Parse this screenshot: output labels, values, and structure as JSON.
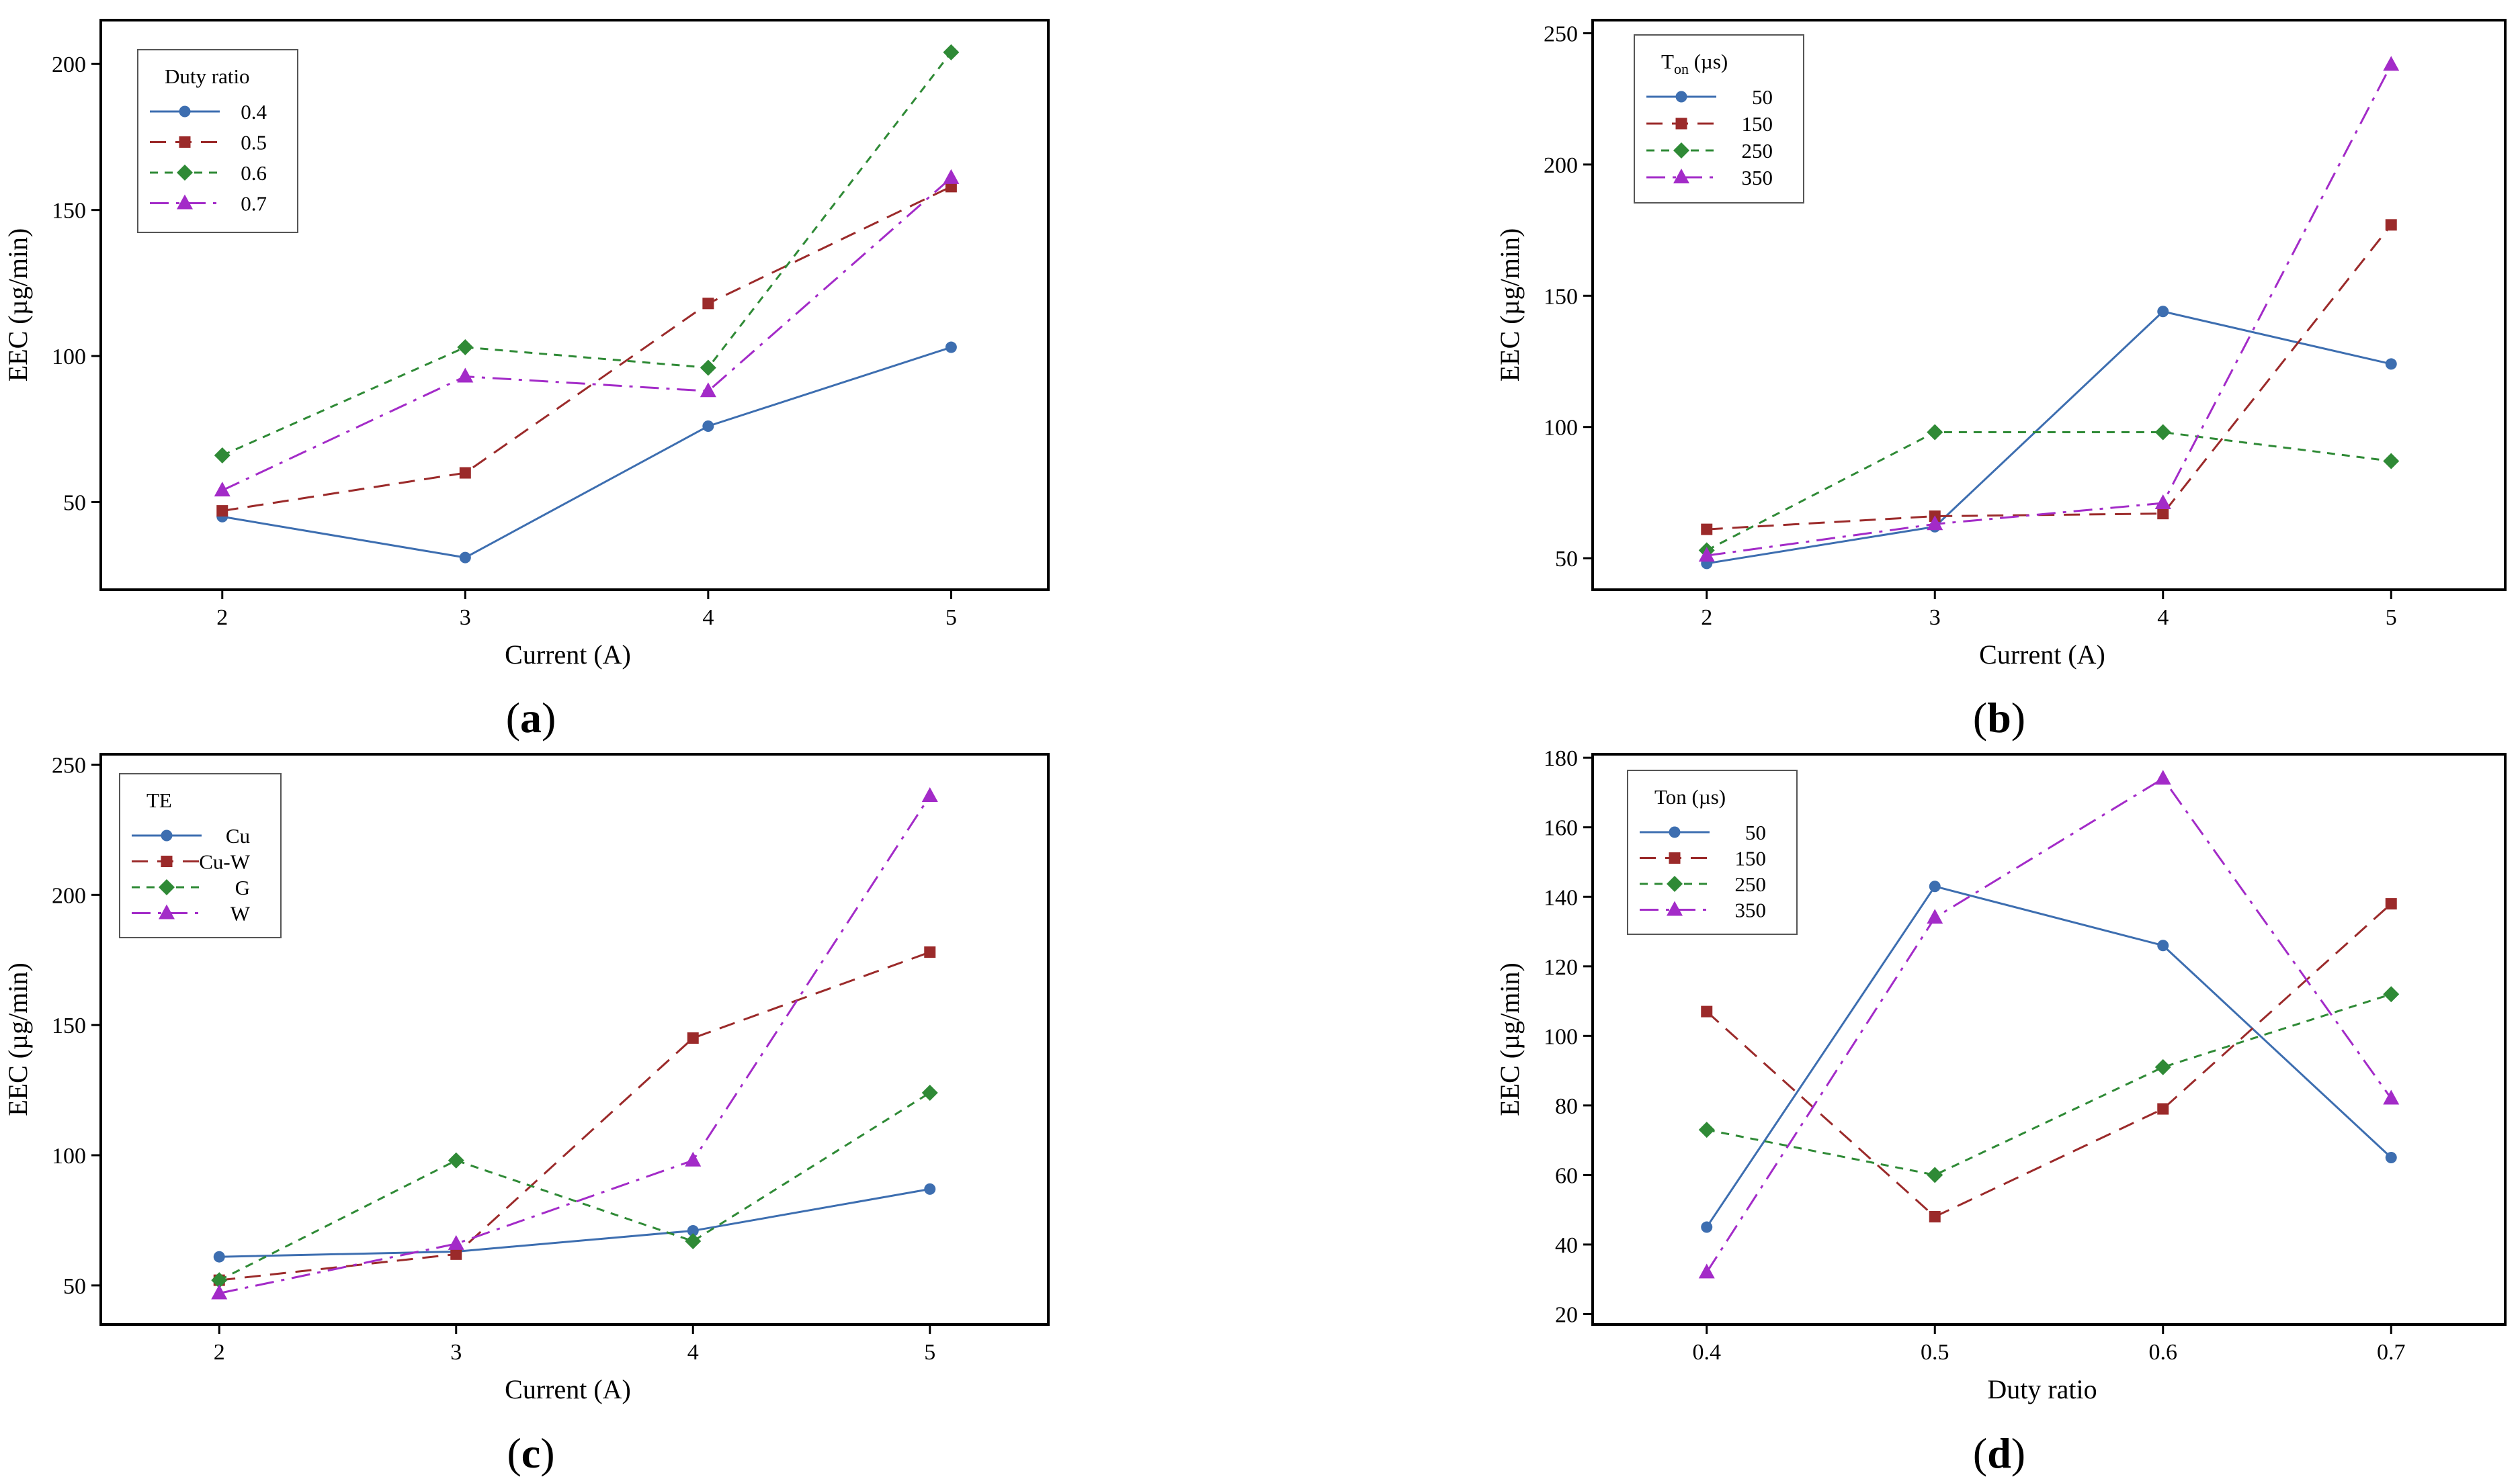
{
  "colors": {
    "blue": "#3d6eb0",
    "red": "#9b2a2a",
    "green": "#2f8a36",
    "purple": "#a32bc8"
  },
  "chart_data": [
    {
      "panel": "a",
      "type": "line",
      "xlabel": "Current (A)",
      "ylabel": "EEC (µg/min)",
      "x": [
        2,
        3,
        4,
        5
      ],
      "xlim": [
        1.5,
        5.4
      ],
      "ylim": [
        20,
        215
      ],
      "yticks": [
        50,
        100,
        150,
        200
      ],
      "legend_title": "Duty ratio",
      "legend_title_sub": "",
      "legend_placement": "top-left",
      "series": [
        {
          "name": "0.4",
          "values": [
            45,
            31,
            76,
            103
          ],
          "color": "#3d6eb0",
          "marker": "circle",
          "dash": "solid"
        },
        {
          "name": "0.5",
          "values": [
            47,
            60,
            118,
            158
          ],
          "color": "#9b2a2a",
          "marker": "square",
          "dash": "dash"
        },
        {
          "name": "0.6",
          "values": [
            66,
            103,
            96,
            204
          ],
          "color": "#2f8a36",
          "marker": "diamond",
          "dash": "fine"
        },
        {
          "name": "0.7",
          "values": [
            54,
            93,
            88,
            161
          ],
          "color": "#a32bc8",
          "marker": "triangle",
          "dash": "dashdot"
        }
      ]
    },
    {
      "panel": "b",
      "type": "line",
      "xlabel": "Current (A)",
      "ylabel": "EEC (µg/min)",
      "x": [
        2,
        3,
        4,
        5
      ],
      "xlim": [
        1.5,
        5.5
      ],
      "ylim": [
        38,
        255
      ],
      "yticks": [
        50,
        100,
        150,
        200,
        250
      ],
      "legend_title": "T",
      "legend_title_sub": "on",
      "legend_title_suffix": " (µs)",
      "legend_placement": "top-left",
      "series": [
        {
          "name": "50",
          "values": [
            48,
            62,
            144,
            124
          ],
          "color": "#3d6eb0",
          "marker": "circle",
          "dash": "solid"
        },
        {
          "name": "150",
          "values": [
            61,
            66,
            67,
            177
          ],
          "color": "#9b2a2a",
          "marker": "square",
          "dash": "dash"
        },
        {
          "name": "250",
          "values": [
            53,
            98,
            98,
            87
          ],
          "color": "#2f8a36",
          "marker": "diamond",
          "dash": "fine"
        },
        {
          "name": "350",
          "values": [
            51,
            63,
            71,
            238
          ],
          "color": "#a32bc8",
          "marker": "triangle",
          "dash": "dashdot"
        }
      ]
    },
    {
      "panel": "c",
      "type": "line",
      "xlabel": "Current (A)",
      "ylabel": "EEC (µg/min)",
      "x": [
        2,
        3,
        4,
        5
      ],
      "xlim": [
        1.5,
        5.5
      ],
      "ylim": [
        35,
        254
      ],
      "yticks": [
        50,
        100,
        150,
        200,
        250
      ],
      "legend_title": "TE",
      "legend_title_sub": "",
      "legend_placement": "top-left",
      "series": [
        {
          "name": "Cu",
          "values": [
            61,
            63,
            71,
            87
          ],
          "color": "#3d6eb0",
          "marker": "circle",
          "dash": "solid"
        },
        {
          "name": "Cu-W",
          "values": [
            52,
            62,
            145,
            178
          ],
          "color": "#9b2a2a",
          "marker": "square",
          "dash": "dash"
        },
        {
          "name": "G",
          "values": [
            52,
            98,
            67,
            124
          ],
          "color": "#2f8a36",
          "marker": "diamond",
          "dash": "fine"
        },
        {
          "name": "W",
          "values": [
            47,
            66,
            98,
            238
          ],
          "color": "#a32bc8",
          "marker": "triangle",
          "dash": "dashdot"
        }
      ]
    },
    {
      "panel": "d",
      "type": "line",
      "xlabel": "Duty ratio",
      "ylabel": "EEC (µg/min)",
      "x": [
        0.4,
        0.5,
        0.6,
        0.7
      ],
      "xlim": [
        0.35,
        0.75
      ],
      "ylim": [
        17,
        181
      ],
      "yticks": [
        20,
        40,
        60,
        80,
        100,
        120,
        140,
        160,
        180
      ],
      "legend_title": "Ton (µs)",
      "legend_title_sub": "",
      "legend_placement": "top-left",
      "series": [
        {
          "name": "50",
          "values": [
            45,
            143,
            126,
            65
          ],
          "color": "#3d6eb0",
          "marker": "circle",
          "dash": "solid"
        },
        {
          "name": "150",
          "values": [
            107,
            48,
            79,
            138
          ],
          "color": "#9b2a2a",
          "marker": "square",
          "dash": "dash"
        },
        {
          "name": "250",
          "values": [
            73,
            60,
            91,
            112
          ],
          "color": "#2f8a36",
          "marker": "diamond",
          "dash": "fine"
        },
        {
          "name": "350",
          "values": [
            32,
            134,
            174,
            82
          ],
          "color": "#a32bc8",
          "marker": "triangle",
          "dash": "dashdot"
        }
      ]
    }
  ],
  "labels": {
    "a": "a",
    "b": "b",
    "c": "c",
    "d": "d"
  }
}
